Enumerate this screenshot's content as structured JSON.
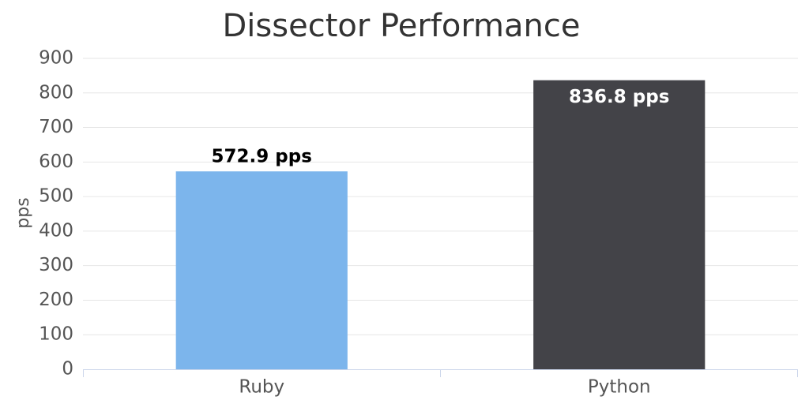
{
  "chart_data": {
    "type": "bar",
    "title": "Dissector Performance",
    "y_label": "pps",
    "categories": [
      "Ruby",
      "Python"
    ],
    "values": [
      572.9,
      836.8
    ],
    "value_labels": [
      "572.9 pps",
      "836.8 pps"
    ],
    "colors": [
      "#7cb5ec",
      "#434348"
    ],
    "ylim": [
      0,
      900
    ],
    "yticks": [
      0,
      100,
      200,
      300,
      400,
      500,
      600,
      700,
      800,
      900
    ],
    "grid": true
  }
}
